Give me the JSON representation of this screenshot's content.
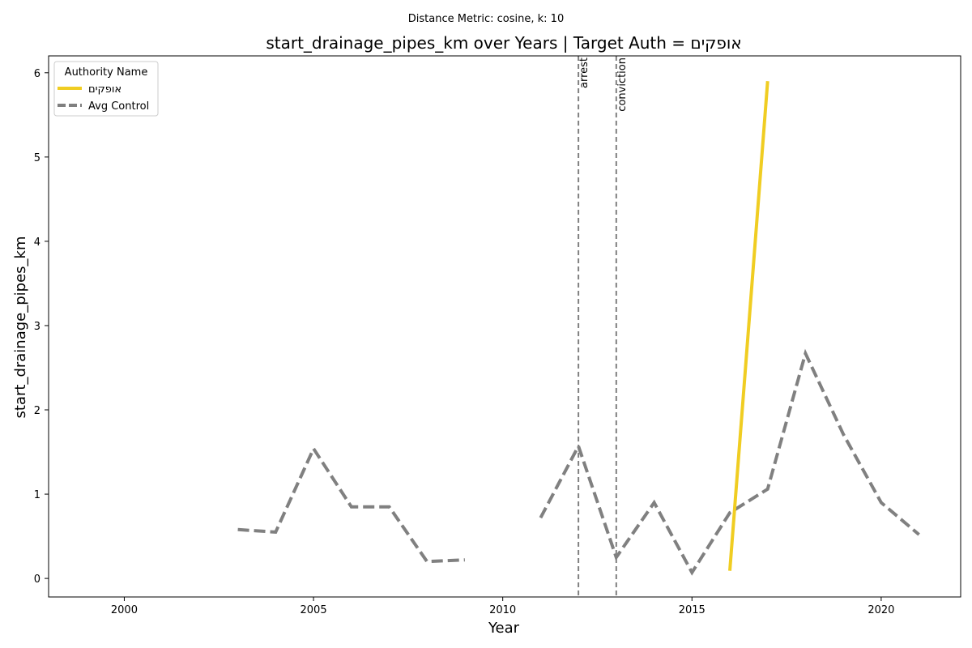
{
  "chart_data": {
    "type": "line",
    "suptitle": "Distance Metric: cosine, k: 10",
    "title": "start_drainage_pipes_km over Years | Target Auth = אופקים",
    "xlabel": "Year",
    "ylabel": "start_drainage_pipes_km",
    "xlim": [
      1998,
      2022.1
    ],
    "ylim": [
      -0.22,
      6.2
    ],
    "xticks": [
      2000,
      2005,
      2010,
      2015,
      2020
    ],
    "yticks": [
      0,
      1,
      2,
      3,
      4,
      5,
      6
    ],
    "grid": false,
    "legend": {
      "title": "Authority Name",
      "placement": "top-left"
    },
    "series": [
      {
        "name": "אופקים",
        "color": "#f0cd22",
        "dash": "solid",
        "points": [
          [
            2016,
            0.09
          ],
          [
            2017,
            5.9
          ]
        ]
      },
      {
        "name": "Avg Control",
        "color": "#808080",
        "dash": "dashed",
        "points": [
          [
            2003,
            0.58
          ],
          [
            2004,
            0.55
          ],
          [
            2005,
            1.54
          ],
          [
            2006,
            0.85
          ],
          [
            2007,
            0.85
          ],
          [
            2008,
            0.2
          ],
          [
            2009,
            0.22
          ],
          [
            2010,
            null
          ],
          [
            2011,
            0.72
          ],
          [
            2012,
            1.57
          ],
          [
            2013,
            0.25
          ],
          [
            2014,
            0.9
          ],
          [
            2015,
            0.07
          ],
          [
            2016,
            0.78
          ],
          [
            2017,
            1.06
          ],
          [
            2018,
            2.67
          ],
          [
            2019,
            1.71
          ],
          [
            2020,
            0.9
          ],
          [
            2021,
            0.52
          ]
        ]
      }
    ],
    "events": [
      {
        "label": "arrest",
        "x": 2012
      },
      {
        "label": "conviction",
        "x": 2013
      }
    ]
  }
}
